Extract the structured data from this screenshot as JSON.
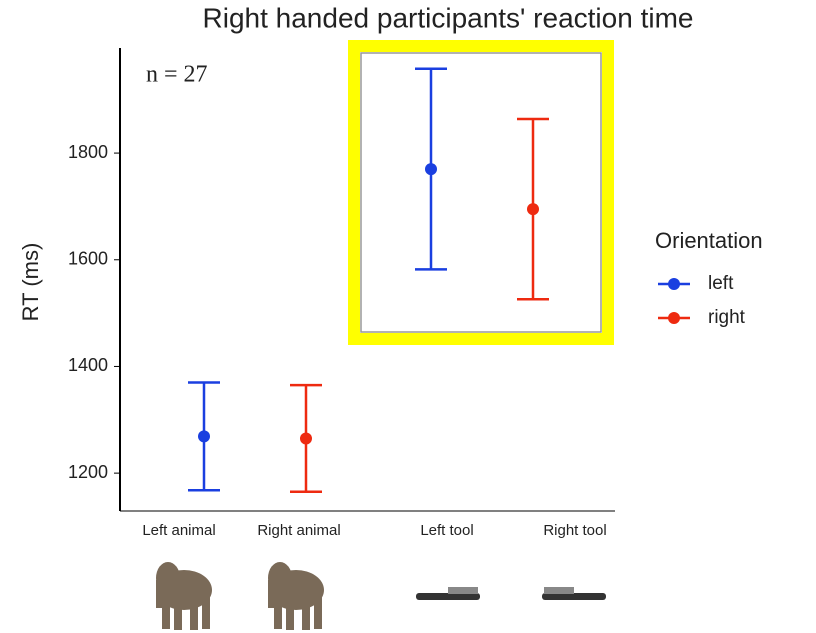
{
  "chart_data": {
    "type": "errorbar",
    "title": "Right handed participants' reaction time",
    "annotation": "n = 27",
    "y_label": "RT (ms)",
    "legend_title": "Orientation",
    "categories": [
      "Left animal",
      "Right animal",
      "Left tool",
      "Right tool"
    ],
    "series": [
      {
        "name": "left",
        "color": "#1a3fe0",
        "values": [
          1269,
          null,
          1770,
          null
        ],
        "errors": [
          101,
          null,
          188,
          null
        ]
      },
      {
        "name": "right",
        "color": "#ee2a10",
        "values": [
          null,
          1265,
          null,
          1695
        ],
        "errors": [
          null,
          100,
          null,
          169
        ]
      }
    ],
    "ylim": [
      1129,
      1997
    ],
    "yticks": [
      1200,
      1400,
      1600,
      1800
    ]
  }
}
